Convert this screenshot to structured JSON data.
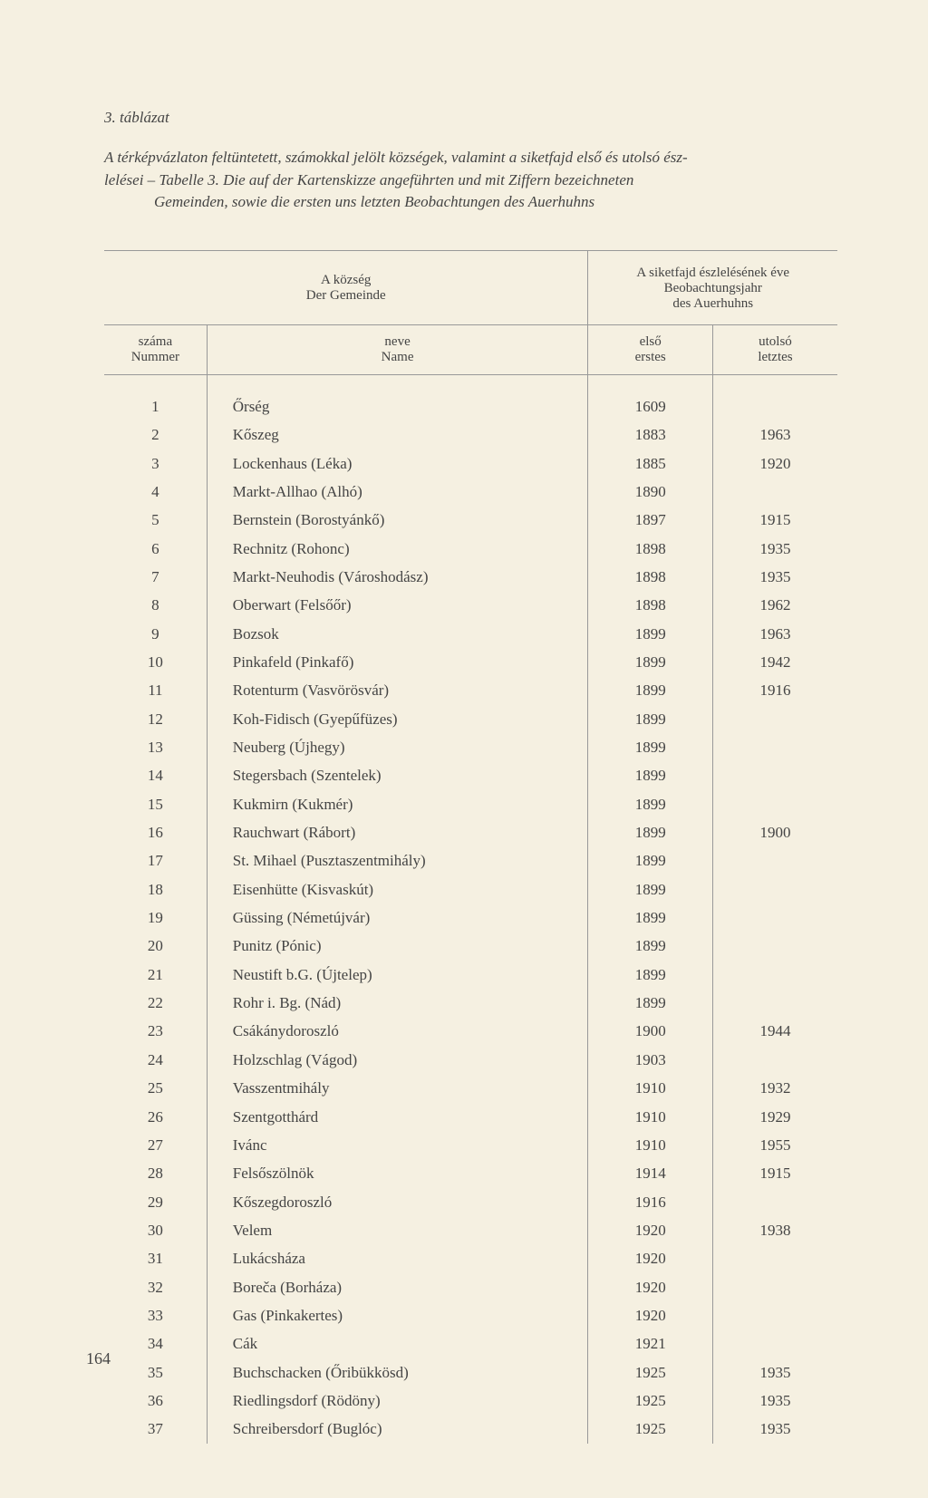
{
  "table_label": "3. táblázat",
  "caption_line1": "A térképvázlaton feltüntetett, számokkal jelölt községek, valamint a siketfajd első és utolsó ész-",
  "caption_line2": "lelései – Tabelle 3. Die auf der Kartenskizze angeführten und mit Ziffern bezeichneten",
  "caption_line3": "Gemeinden, sowie die ersten uns letzten Beobachtungen des Auerhuhns",
  "header": {
    "group_left_line1": "A község",
    "group_left_line2": "Der Gemeinde",
    "group_right_line1": "A siketfajd észlelésének éve",
    "group_right_line2": "Beobachtungsjahr",
    "group_right_line3": "des Auerhuhns",
    "col_num_line1": "száma",
    "col_num_line2": "Nummer",
    "col_name_line1": "neve",
    "col_name_line2": "Name",
    "col_first_line1": "első",
    "col_first_line2": "erstes",
    "col_last_line1": "utolsó",
    "col_last_line2": "letztes"
  },
  "rows": [
    {
      "num": "1",
      "name": "Őrség",
      "first": "1609",
      "last": ""
    },
    {
      "num": "2",
      "name": "Kőszeg",
      "first": "1883",
      "last": "1963"
    },
    {
      "num": "3",
      "name": "Lockenhaus (Léka)",
      "first": "1885",
      "last": "1920"
    },
    {
      "num": "4",
      "name": "Markt-Allhao (Alhó)",
      "first": "1890",
      "last": ""
    },
    {
      "num": "5",
      "name": "Bernstein (Borostyánkő)",
      "first": "1897",
      "last": "1915"
    },
    {
      "num": "6",
      "name": "Rechnitz (Rohonc)",
      "first": "1898",
      "last": "1935"
    },
    {
      "num": "7",
      "name": "Markt-Neuhodis (Városhodász)",
      "first": "1898",
      "last": "1935"
    },
    {
      "num": "8",
      "name": "Oberwart (Felsőőr)",
      "first": "1898",
      "last": "1962"
    },
    {
      "num": "9",
      "name": "Bozsok",
      "first": "1899",
      "last": "1963"
    },
    {
      "num": "10",
      "name": "Pinkafeld (Pinkafő)",
      "first": "1899",
      "last": "1942"
    },
    {
      "num": "11",
      "name": "Rotenturm (Vasvörösvár)",
      "first": "1899",
      "last": "1916"
    },
    {
      "num": "12",
      "name": "Koh-Fidisch (Gyepűfüzes)",
      "first": "1899",
      "last": ""
    },
    {
      "num": "13",
      "name": "Neuberg (Újhegy)",
      "first": "1899",
      "last": ""
    },
    {
      "num": "14",
      "name": "Stegersbach (Szentelek)",
      "first": "1899",
      "last": ""
    },
    {
      "num": "15",
      "name": "Kukmirn (Kukmér)",
      "first": "1899",
      "last": ""
    },
    {
      "num": "16",
      "name": "Rauchwart (Rábort)",
      "first": "1899",
      "last": "1900"
    },
    {
      "num": "17",
      "name": "St. Mihael (Pusztaszentmihály)",
      "first": "1899",
      "last": ""
    },
    {
      "num": "18",
      "name": "Eisenhütte (Kisvaskút)",
      "first": "1899",
      "last": ""
    },
    {
      "num": "19",
      "name": "Güssing (Németújvár)",
      "first": "1899",
      "last": ""
    },
    {
      "num": "20",
      "name": "Punitz (Pónic)",
      "first": "1899",
      "last": ""
    },
    {
      "num": "21",
      "name": "Neustift b.G. (Újtelep)",
      "first": "1899",
      "last": ""
    },
    {
      "num": "22",
      "name": "Rohr i. Bg. (Nád)",
      "first": "1899",
      "last": ""
    },
    {
      "num": "23",
      "name": "Csákánydoroszló",
      "first": "1900",
      "last": "1944"
    },
    {
      "num": "24",
      "name": "Holzschlag (Vágod)",
      "first": "1903",
      "last": ""
    },
    {
      "num": "25",
      "name": "Vasszentmihály",
      "first": "1910",
      "last": "1932"
    },
    {
      "num": "26",
      "name": "Szentgotthárd",
      "first": "1910",
      "last": "1929"
    },
    {
      "num": "27",
      "name": "Ivánc",
      "first": "1910",
      "last": "1955"
    },
    {
      "num": "28",
      "name": "Felsőszölnök",
      "first": "1914",
      "last": "1915"
    },
    {
      "num": "29",
      "name": "Kőszegdoroszló",
      "first": "1916",
      "last": ""
    },
    {
      "num": "30",
      "name": "Velem",
      "first": "1920",
      "last": "1938"
    },
    {
      "num": "31",
      "name": "Lukácsháza",
      "first": "1920",
      "last": ""
    },
    {
      "num": "32",
      "name": "Boreča (Borháza)",
      "first": "1920",
      "last": ""
    },
    {
      "num": "33",
      "name": "Gas (Pinkakertes)",
      "first": "1920",
      "last": ""
    },
    {
      "num": "34",
      "name": "Cák",
      "first": "1921",
      "last": ""
    },
    {
      "num": "35",
      "name": "Buchschacken (Őribükkösd)",
      "first": "1925",
      "last": "1935"
    },
    {
      "num": "36",
      "name": "Riedlingsdorf (Rödöny)",
      "first": "1925",
      "last": "1935"
    },
    {
      "num": "37",
      "name": "Schreibersdorf (Buglóc)",
      "first": "1925",
      "last": "1935"
    }
  ],
  "page_number": "164"
}
